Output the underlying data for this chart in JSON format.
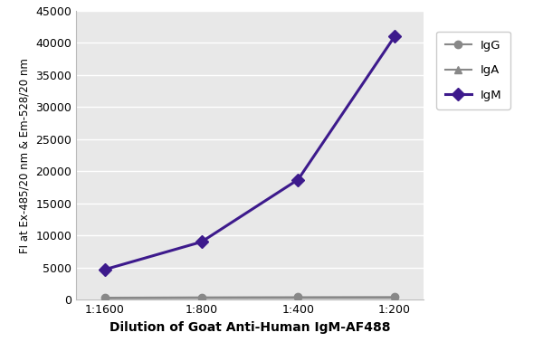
{
  "x_labels": [
    "1:1600",
    "1:800",
    "1:400",
    "1:200"
  ],
  "x_positions": [
    0,
    1,
    2,
    3
  ],
  "IgM_values": [
    4700,
    9000,
    18700,
    41000
  ],
  "IgG_values": [
    300,
    350,
    380,
    400
  ],
  "IgA_values": [
    200,
    250,
    270,
    280
  ],
  "IgM_color": "#3d1a8c",
  "IgG_color": "#888888",
  "IgA_color": "#888888",
  "ylabel": "FI at Ex-485/20 nm & Em-528/20 nm",
  "xlabel": "Dilution of Goat Anti-Human IgM-AF488",
  "ylim": [
    0,
    45000
  ],
  "yticks": [
    0,
    5000,
    10000,
    15000,
    20000,
    25000,
    30000,
    35000,
    40000,
    45000
  ],
  "background_color": "#ffffff",
  "plot_bg_color": "#e8e8e8",
  "IgM_marker": "D",
  "IgG_marker": "o",
  "IgA_marker": "^",
  "legend_labels": [
    "IgM",
    "IgG",
    "IgA"
  ]
}
